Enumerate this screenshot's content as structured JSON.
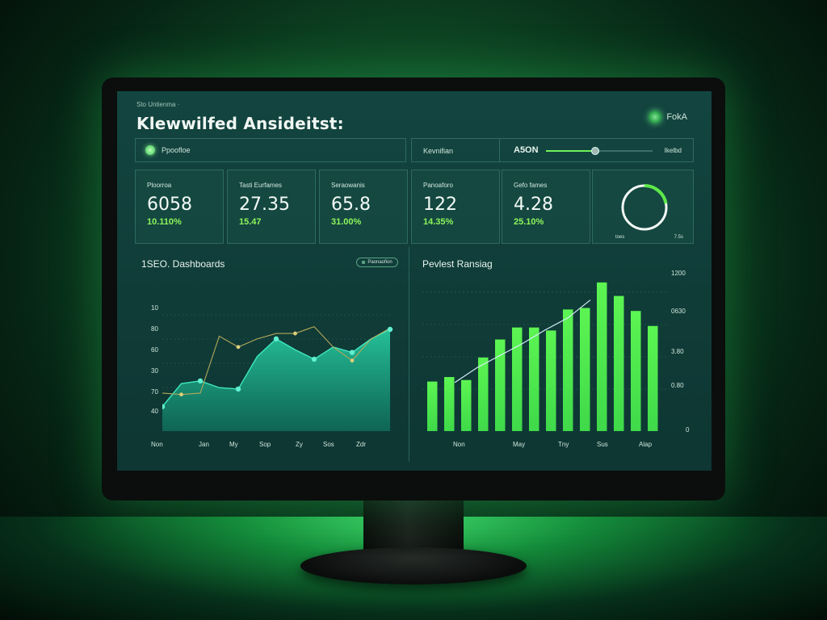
{
  "dashboard": {
    "breadcrumb": "Sto Untienma ·",
    "title": "Klewwilfed Ansideitst:",
    "brand": "FokA"
  },
  "filter_bar": {
    "label": "Ppoofloe"
  },
  "control_bar": {
    "label": "Kevnifian",
    "slider_label": "A5ON",
    "slider_value": 0.46,
    "end_label": "Ikelbd"
  },
  "kpis": [
    {
      "label": "Ploorroa",
      "value": "6058",
      "delta": "10.110%"
    },
    {
      "label": "Tasti Eurfames",
      "value": "27.35",
      "delta": "15.47"
    },
    {
      "label": "Seraowanis",
      "value": "65.8",
      "delta": "31.00%"
    },
    {
      "label": "Panoaforo",
      "value": "122",
      "delta": "14.35%"
    },
    {
      "label": "Gefo fames",
      "value": "4.28",
      "delta": "25.10%"
    }
  ],
  "gauge": {
    "value": 0.22,
    "left_label": "toes",
    "right_label": "7.5s"
  },
  "left_panel": {
    "title": "1SEO. Dashboards",
    "tag": "Paonaofion",
    "y_ticks": [
      "10",
      "80",
      "60",
      "30",
      "70",
      "40"
    ],
    "x_ticks": [
      "Non",
      "Jan",
      "My",
      "Sop",
      "Zy",
      "Sos",
      "Zdr"
    ]
  },
  "right_panel": {
    "title": "Pevlest Ransiag",
    "y_ticks": [
      "1200",
      "0630",
      "3.80",
      "0.80",
      "0"
    ],
    "x_ticks": [
      "Non",
      "May",
      "Tny",
      "Sus",
      "Alap"
    ]
  },
  "chart_data": [
    {
      "type": "area",
      "title": "1SEO. Dashboards",
      "series": [
        {
          "values": [
            0.18,
            0.35,
            0.37,
            0.32,
            0.31,
            0.55,
            0.68,
            0.6,
            0.53,
            0.62,
            0.58,
            0.68,
            0.75
          ],
          "color": "#1fb28e"
        },
        {
          "values": [
            0.28,
            0.27,
            0.28,
            0.7,
            0.62,
            0.68,
            0.72,
            0.72,
            0.77,
            0.62,
            0.52,
            0.68,
            0.76
          ],
          "color": "#b5a85a"
        }
      ],
      "x_count": 13,
      "ylim": [
        0,
        1
      ],
      "grid": true
    },
    {
      "type": "bar",
      "title": "Pevlest Ransiag",
      "values": [
        0.33,
        0.36,
        0.34,
        0.49,
        0.61,
        0.69,
        0.69,
        0.67,
        0.81,
        0.82,
        0.99,
        0.9,
        0.8,
        0.7
      ],
      "trend": [
        0.42,
        0.52,
        0.6,
        0.68,
        0.77,
        0.85,
        0.97
      ],
      "bar_color": "#3fd94a",
      "ylim": [
        0,
        1
      ],
      "grid": true
    }
  ]
}
